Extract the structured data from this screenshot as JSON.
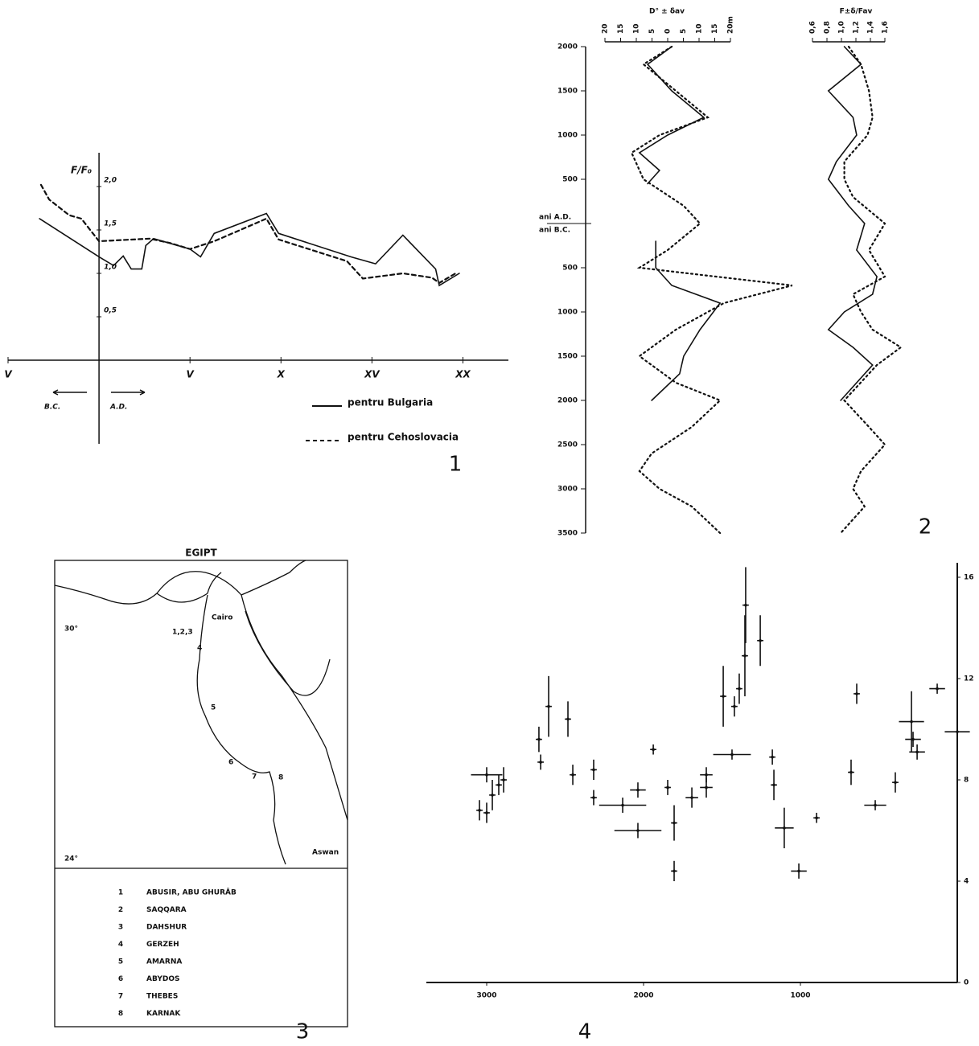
{
  "chart_data": [
    {
      "type": "line",
      "ylabel": "F/F₀",
      "xlim": [
        -5,
        22.5
      ],
      "ylim": [
        0,
        2.3
      ],
      "xticks": [
        {
          "value": -5,
          "label": "V"
        },
        {
          "value": 5,
          "label": "V"
        },
        {
          "value": 10,
          "label": "X"
        },
        {
          "value": 15,
          "label": "XV"
        },
        {
          "value": 20,
          "label": "XX"
        }
      ],
      "yticks": [
        {
          "value": 0.5,
          "label": "0,5"
        },
        {
          "value": 1,
          "label": "1,0"
        },
        {
          "value": 1.5,
          "label": "1,5"
        },
        {
          "value": 2,
          "label": "2,0"
        }
      ],
      "annotations": [
        "B.C.",
        "A.D."
      ],
      "series": [
        {
          "name": "pentru Bulgaria",
          "color": "#111111",
          "dash": false,
          "x": [
            -3.27,
            0,
            0.8,
            1.33,
            1.77,
            2.35,
            2.57,
            3.0,
            5.0,
            5.58,
            6.33,
            9.2,
            9.87,
            13.85,
            15.2,
            16.7,
            18.5,
            18.7,
            19.8
          ],
          "values": [
            1.63,
            1.19,
            1.09,
            1.2,
            1.05,
            1.05,
            1.32,
            1.4,
            1.28,
            1.19,
            1.46,
            1.69,
            1.46,
            1.19,
            1.11,
            1.44,
            1.05,
            0.86,
            1.0
          ]
        },
        {
          "name": "pentru Cehoslovacia",
          "color": "#111111",
          "dash": true,
          "x": [
            -3.19,
            -2.74,
            -1.64,
            -0.97,
            0,
            2.79,
            3.89,
            5.0,
            6.33,
            9.2,
            9.87,
            13.63,
            14.5,
            16.7,
            18.3,
            18.7,
            19.6
          ],
          "values": [
            2.02,
            1.85,
            1.67,
            1.63,
            1.37,
            1.4,
            1.35,
            1.28,
            1.37,
            1.63,
            1.39,
            1.14,
            0.94,
            1.0,
            0.95,
            0.89,
            1.0
          ]
        }
      ]
    },
    {
      "type": "line",
      "orientation": "vertical",
      "title": "D° ± δav",
      "xlim": [
        -25,
        45
      ],
      "ylim": [
        -3500,
        2000
      ],
      "xticks": [
        {
          "value": -20,
          "label": "20"
        },
        {
          "value": -15,
          "label": "15"
        },
        {
          "value": -10,
          "label": "10"
        },
        {
          "value": -5,
          "label": "5"
        },
        0,
        5,
        10,
        15,
        {
          "value": 20,
          "label": "20m"
        }
      ],
      "yticks": [
        2000,
        1500,
        1000,
        500,
        {
          "value": -500,
          "label": "500"
        },
        {
          "value": -1000,
          "label": "1000"
        },
        {
          "value": -1500,
          "label": "1500"
        },
        {
          "value": -2000,
          "label": "2000"
        },
        {
          "value": -2500,
          "label": "2500"
        },
        {
          "value": -3000,
          "label": "3000"
        },
        {
          "value": -3500,
          "label": "3500"
        }
      ],
      "annotations": [
        "ani A.D.",
        "ani B.C."
      ],
      "series": [
        {
          "color": "#111111",
          "dash": false,
          "years": [
            2000,
            1800,
            1500,
            1200,
            1000,
            800,
            600,
            450,
            null,
            -200,
            -500,
            -700,
            -900,
            -1200,
            -1500,
            -1700,
            -2000
          ],
          "values": [
            1.3,
            -6.4,
            1.3,
            11.5,
            0,
            -9.0,
            -2.6,
            -6.4,
            null,
            -3.8,
            -3.8,
            1.3,
            16.7,
            10.3,
            5.1,
            3.8,
            -5.1
          ]
        },
        {
          "color": "#111111",
          "dash": true,
          "years": [
            2000,
            1800,
            1500,
            1200,
            1000,
            800,
            500,
            200,
            0,
            -300,
            -500,
            -700,
            -900,
            -1200,
            -1500,
            -1800,
            -2000,
            -2300,
            -2600,
            -2800,
            -3000,
            -3200,
            -3500
          ],
          "values": [
            1.3,
            -7.7,
            2.6,
            12.8,
            -2.6,
            -11.5,
            -7.7,
            5.1,
            10.3,
            0,
            -9.0,
            39.7,
            17.9,
            2.6,
            -9.0,
            2.6,
            16.7,
            7.7,
            -5.1,
            -9.0,
            -2.6,
            7.7,
            16.7
          ]
        }
      ]
    },
    {
      "type": "line",
      "orientation": "vertical",
      "title": "F±δ/Fav",
      "xlim": [
        0.5,
        1.9
      ],
      "ylim": [
        -3500,
        2000
      ],
      "xticks": [
        {
          "value": 0.6,
          "label": "0,6"
        },
        {
          "value": 0.8,
          "label": "0,8"
        },
        {
          "value": 1,
          "label": "1,0"
        },
        {
          "value": 1.2,
          "label": "1,2"
        },
        {
          "value": 1.4,
          "label": "1,4"
        },
        {
          "value": 1.6,
          "label": "1,6"
        }
      ],
      "series": [
        {
          "color": "#111111",
          "dash": false,
          "years": [
            2000,
            1800,
            1500,
            1200,
            1000,
            700,
            500,
            200,
            0,
            -300,
            -600,
            -800,
            -1000,
            -1200,
            -1400,
            -1600,
            -2000
          ],
          "values": [
            1.04,
            1.27,
            0.82,
            1.16,
            1.21,
            0.93,
            0.82,
            1.1,
            1.32,
            1.21,
            1.49,
            1.43,
            1.04,
            0.82,
            1.16,
            1.43,
            0.99
          ]
        },
        {
          "color": "#111111",
          "dash": true,
          "years": [
            2000,
            1800,
            1500,
            1200,
            1000,
            700,
            500,
            300,
            0,
            -300,
            -600,
            -800,
            -1000,
            -1200,
            -1400,
            -1600,
            -2000,
            -2300,
            -2500,
            -2800,
            -3000,
            -3200,
            -3500
          ],
          "values": [
            1.1,
            1.27,
            1.38,
            1.43,
            1.36,
            1.04,
            1.04,
            1.16,
            1.6,
            1.38,
            1.6,
            1.16,
            1.27,
            1.43,
            1.82,
            1.49,
            1.04,
            1.38,
            1.6,
            1.27,
            1.16,
            1.32,
            0.99
          ]
        }
      ]
    },
    {
      "type": "scatter",
      "xlim": [
        3400,
        0
      ],
      "ylim": [
        0,
        17
      ],
      "xticks": [
        3000,
        2000,
        1000
      ],
      "yticks": [
        0,
        4,
        8,
        12,
        16
      ],
      "color": "#111111",
      "x": [
        3046,
        3000,
        2964,
        2923,
        2892,
        3000,
        2667,
        2605,
        2482,
        2656,
        2451,
        2318,
        2318,
        2133,
        2036,
        2036,
        1938,
        1846,
        1805,
        1805,
        1692,
        1600,
        1600,
        1492,
        1421,
        1390,
        1436,
        1354,
        1349,
        1256,
        1179,
        1169,
        1103,
        1010,
        897,
        677,
        641,
        523,
        395,
        292,
        282,
        256,
        128,
        0
      ],
      "values": [
        6.8,
        6.7,
        7.4,
        7.8,
        8.0,
        8.2,
        9.6,
        10.9,
        10.4,
        8.7,
        8.2,
        8.4,
        7.3,
        7.0,
        7.6,
        6.0,
        9.2,
        7.7,
        6.3,
        4.4,
        7.3,
        7.7,
        8.2,
        11.3,
        10.9,
        11.6,
        9.0,
        12.9,
        14.9,
        13.5,
        8.9,
        7.8,
        6.1,
        4.4,
        6.5,
        8.3,
        11.4,
        7.0,
        7.9,
        10.3,
        9.6,
        9.1,
        11.6,
        9.9
      ],
      "xerr": [
        20,
        20,
        20,
        20,
        20,
        100,
        20,
        20,
        20,
        20,
        20,
        20,
        20,
        150,
        50,
        150,
        20,
        20,
        20,
        20,
        40,
        40,
        40,
        20,
        20,
        20,
        120,
        20,
        20,
        20,
        20,
        20,
        60,
        50,
        20,
        20,
        20,
        70,
        20,
        80,
        50,
        50,
        50,
        80
      ],
      "yerr": [
        0.4,
        0.4,
        0.6,
        0.4,
        0.5,
        0.3,
        0.5,
        1.2,
        0.7,
        0.3,
        0.4,
        0.4,
        0.3,
        0.3,
        0.3,
        0.3,
        0.2,
        0.3,
        0.7,
        0.4,
        0.4,
        0.4,
        0.3,
        1.2,
        0.4,
        0.6,
        0.2,
        1.6,
        1.5,
        1.0,
        0.3,
        0.6,
        0.8,
        0.3,
        0.2,
        0.5,
        0.4,
        0.2,
        0.4,
        1.2,
        0.3,
        0.3,
        0.2,
        0.6
      ]
    }
  ],
  "map": {
    "title": "EGIPT",
    "places": [
      "Cairo",
      "Aswan"
    ],
    "latitudes": [
      "30°",
      "24°"
    ],
    "site_markers": [
      "1,2,3",
      "4",
      "5",
      "6",
      "7",
      "8"
    ],
    "legend": [
      {
        "number": "1",
        "name": "ABUSIR, ABU GHURĀB"
      },
      {
        "number": "2",
        "name": "SAQQARA"
      },
      {
        "number": "3",
        "name": "DAHSHUR"
      },
      {
        "number": "4",
        "name": "GERZEH"
      },
      {
        "number": "5",
        "name": "AMARNA"
      },
      {
        "number": "6",
        "name": "ABYDOS"
      },
      {
        "number": "7",
        "name": "THEBES"
      },
      {
        "number": "8",
        "name": "KARNAK"
      }
    ]
  },
  "panel_labels": [
    "1",
    "2",
    "3",
    "4"
  ]
}
